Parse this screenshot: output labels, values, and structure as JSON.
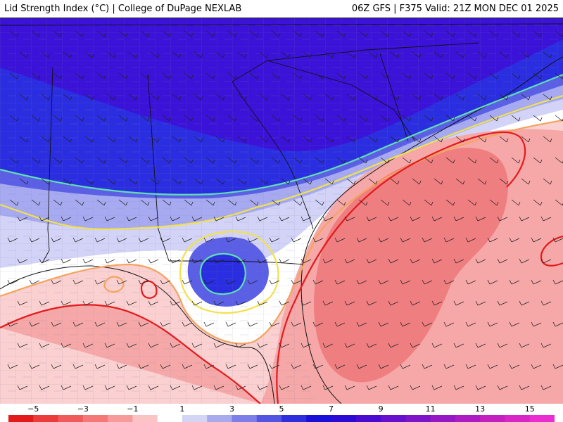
{
  "header": {
    "title": "Lid Strength Index (°C) | College of DuPage NEXLAB",
    "run_info": "06Z GFS | F375 Valid: 21Z MON DEC 01 2025"
  },
  "colorbar": {
    "ticks": [
      "−5",
      "−3",
      "−1",
      "1",
      "3",
      "5",
      "7",
      "9",
      "11",
      "13",
      "15"
    ],
    "tick_values": [
      -5,
      -3,
      -1,
      1,
      3,
      5,
      7,
      9,
      11,
      13,
      15
    ],
    "range": [
      -6,
      16
    ],
    "bins": [
      {
        "from": -6,
        "to": -5,
        "color": "#e31a1c"
      },
      {
        "from": -5,
        "to": -4,
        "color": "#ec3b3b"
      },
      {
        "from": -4,
        "to": -3,
        "color": "#f05a5a"
      },
      {
        "from": -3,
        "to": -2,
        "color": "#f47878"
      },
      {
        "from": -2,
        "to": -1,
        "color": "#f79a9a"
      },
      {
        "from": -1,
        "to": 0,
        "color": "#fbc4c4"
      },
      {
        "from": 0,
        "to": 1,
        "color": "#ffffff"
      },
      {
        "from": 1,
        "to": 2,
        "color": "#d4d4f5"
      },
      {
        "from": 2,
        "to": 3,
        "color": "#a9a9ee"
      },
      {
        "from": 3,
        "to": 4,
        "color": "#7e7ee8"
      },
      {
        "from": 4,
        "to": 5,
        "color": "#5454e3"
      },
      {
        "from": 5,
        "to": 6,
        "color": "#2e2edd"
      },
      {
        "from": 6,
        "to": 7,
        "color": "#1a0fd8"
      },
      {
        "from": 7,
        "to": 8,
        "color": "#2b0ad4"
      },
      {
        "from": 8,
        "to": 9,
        "color": "#4a0bd0"
      },
      {
        "from": 9,
        "to": 10,
        "color": "#6410cc"
      },
      {
        "from": 10,
        "to": 11,
        "color": "#7d14c8"
      },
      {
        "from": 11,
        "to": 12,
        "color": "#9518c4"
      },
      {
        "from": 12,
        "to": 13,
        "color": "#ad1cc2"
      },
      {
        "from": 13,
        "to": 14,
        "color": "#c420c0"
      },
      {
        "from": 14,
        "to": 15,
        "color": "#d826c6"
      },
      {
        "from": 15,
        "to": 16,
        "color": "#ea2dd0"
      }
    ]
  },
  "map": {
    "contour_colors": {
      "strong_cap": "#e41a1c",
      "weak_cap": "#f4a460",
      "slight_lid": "#f2e24a",
      "moderate_lid": "#5fe0b0"
    },
    "field_colors": {
      "deep_purple": "#3a12d8",
      "blue": "#2b2ee0",
      "mid_blue": "#5a5fe6",
      "light_blue": "#a7aaf0",
      "pale_blue": "#d2d3f7",
      "white": "#ffffff",
      "pale_red": "#fbd0d0",
      "light_red": "#f6a8a8",
      "red": "#ef7e80"
    }
  }
}
